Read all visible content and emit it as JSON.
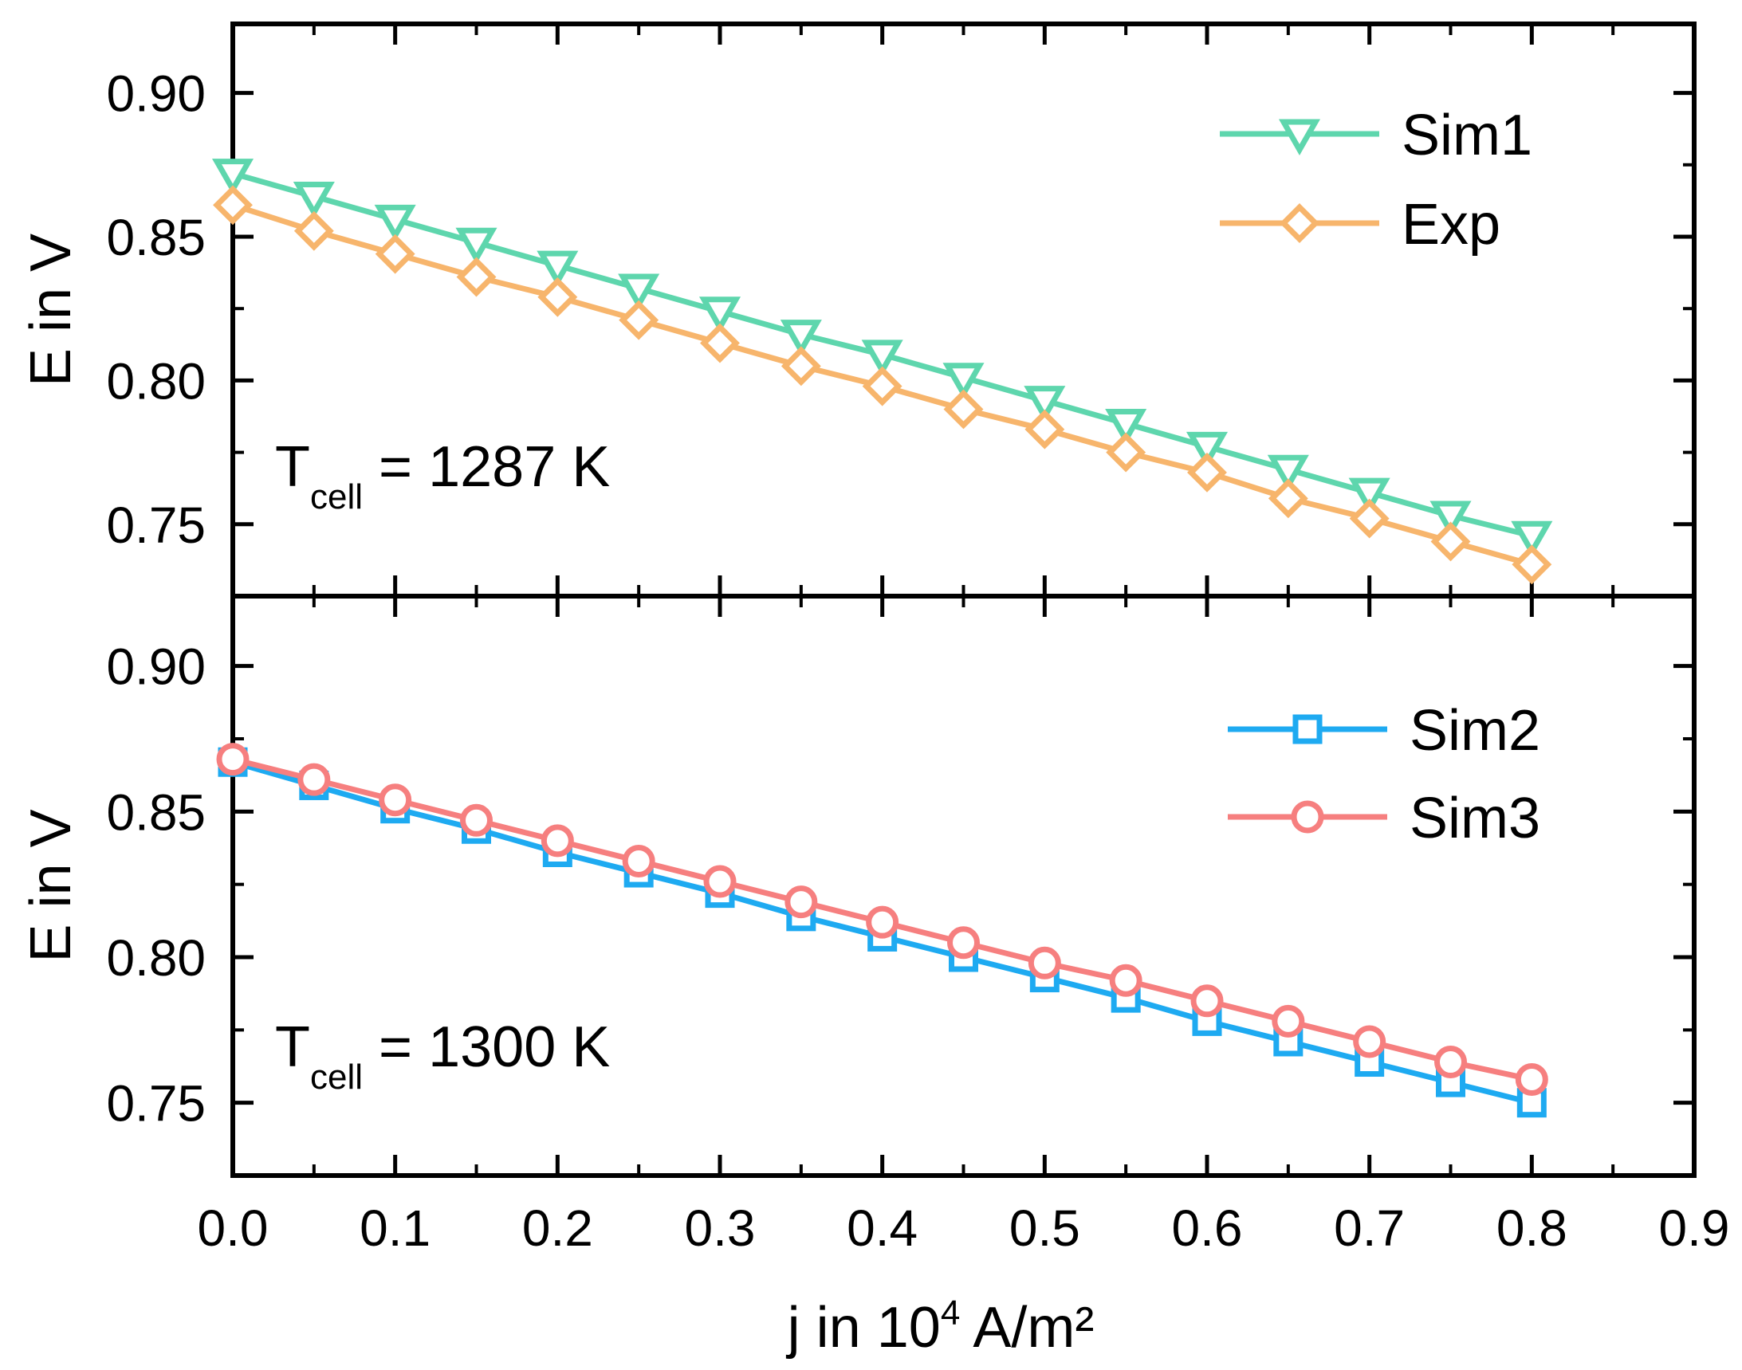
{
  "chart_data": [
    {
      "type": "line",
      "panel": "top",
      "x": [
        0.0,
        0.05,
        0.1,
        0.15,
        0.2,
        0.25,
        0.3,
        0.35,
        0.4,
        0.45,
        0.5,
        0.55,
        0.6,
        0.65,
        0.7,
        0.75,
        0.8
      ],
      "series": [
        {
          "name": "Sim1",
          "marker": "triangle-down",
          "color": "#5ed6ad",
          "values": [
            0.872,
            0.864,
            0.856,
            0.848,
            0.84,
            0.832,
            0.824,
            0.816,
            0.809,
            0.801,
            0.793,
            0.785,
            0.777,
            0.769,
            0.761,
            0.753,
            0.746
          ]
        },
        {
          "name": "Exp",
          "marker": "diamond",
          "color": "#f7b56c",
          "values": [
            0.861,
            0.852,
            0.844,
            0.836,
            0.829,
            0.821,
            0.813,
            0.805,
            0.798,
            0.79,
            0.783,
            0.775,
            0.768,
            0.759,
            0.752,
            0.744,
            0.736
          ]
        }
      ],
      "ylabel": "E in V",
      "ylim": [
        0.725,
        0.924
      ],
      "yticks": [
        0.75,
        0.8,
        0.85,
        0.9
      ],
      "ytick_labels": [
        "0.75",
        "0.80",
        "0.85",
        "0.90"
      ],
      "annotation": {
        "main": "T",
        "sub": "cell",
        "rest": " = 1287 K"
      },
      "legend": "top-right"
    },
    {
      "type": "line",
      "panel": "bottom",
      "x": [
        0.0,
        0.05,
        0.1,
        0.15,
        0.2,
        0.25,
        0.3,
        0.35,
        0.4,
        0.45,
        0.5,
        0.55,
        0.6,
        0.65,
        0.7,
        0.75,
        0.8
      ],
      "series": [
        {
          "name": "Sim2",
          "marker": "square",
          "color": "#1eaaf1",
          "values": [
            0.867,
            0.859,
            0.851,
            0.844,
            0.836,
            0.829,
            0.822,
            0.814,
            0.807,
            0.8,
            0.793,
            0.786,
            0.778,
            0.771,
            0.764,
            0.757,
            0.75
          ]
        },
        {
          "name": "Sim3",
          "marker": "circle",
          "color": "#f67f7f",
          "values": [
            0.868,
            0.861,
            0.854,
            0.847,
            0.84,
            0.833,
            0.826,
            0.819,
            0.812,
            0.805,
            0.798,
            0.792,
            0.785,
            0.778,
            0.771,
            0.764,
            0.758
          ]
        }
      ],
      "ylabel": "E in V",
      "ylim": [
        0.725,
        0.924
      ],
      "yticks": [
        0.75,
        0.8,
        0.85,
        0.9
      ],
      "ytick_labels": [
        "0.75",
        "0.80",
        "0.85",
        "0.90"
      ],
      "annotation": {
        "main": "T",
        "sub": "cell",
        "rest": " = 1300 K"
      },
      "legend": "top-right"
    }
  ],
  "shared_x_axis": {
    "xlim": [
      0.0,
      0.9
    ],
    "xticks": [
      0.0,
      0.1,
      0.2,
      0.3,
      0.4,
      0.5,
      0.6,
      0.7,
      0.8,
      0.9
    ],
    "xtick_labels": [
      "0.0",
      "0.1",
      "0.2",
      "0.3",
      "0.4",
      "0.5",
      "0.6",
      "0.7",
      "0.8",
      "0.9"
    ],
    "xlabel_prefix": "j in 10",
    "xlabel_exponent": "4",
    "xlabel_suffix": " A/m²"
  }
}
